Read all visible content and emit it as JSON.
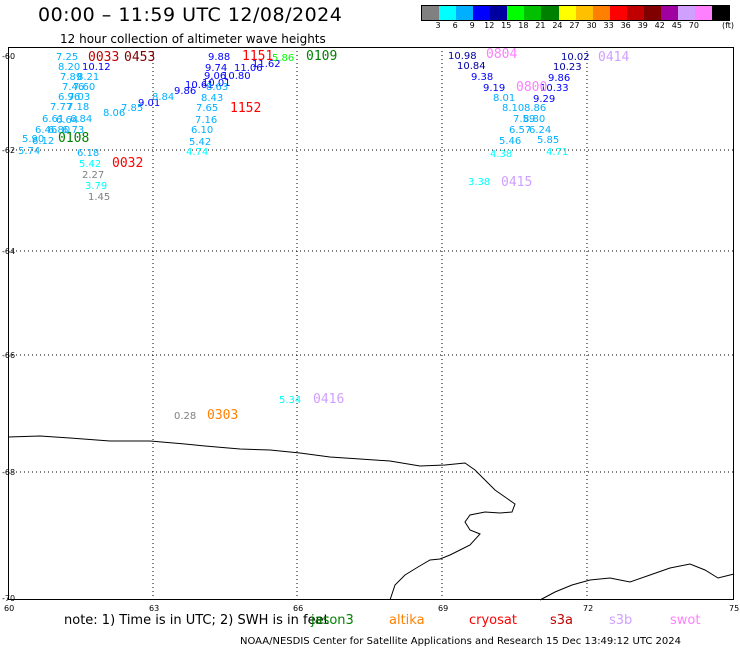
{
  "title": "00:00 – 11:59 UTC 12/08/2024",
  "subtitle": "12 hour collection of altimeter wave heights",
  "legend": {
    "unit": "(ft)",
    "ticks": [
      "3",
      "6",
      "9",
      "12",
      "15",
      "18",
      "21",
      "24",
      "27",
      "30",
      "33",
      "36",
      "39",
      "42",
      "45",
      "70"
    ],
    "colors": [
      "#808080",
      "#00ffff",
      "#00b0ff",
      "#0000ff",
      "#0000a0",
      "#00ff00",
      "#00c000",
      "#008000",
      "#ffff00",
      "#ffc000",
      "#ff8000",
      "#ff0000",
      "#c00000",
      "#800000",
      "#a000a0",
      "#d0a0ff",
      "#ff80ff",
      "#000000"
    ]
  },
  "axes": {
    "lat_labels": [
      "-60",
      "-62",
      "-64",
      "-66",
      "-68",
      "-70"
    ],
    "lon_labels": [
      "60",
      "63",
      "66",
      "69",
      "72",
      "75"
    ]
  },
  "wave_labels": [
    {
      "text": "7.25",
      "color": "#00b0ff"
    },
    {
      "text": "10.12",
      "color": "#0000ff"
    },
    {
      "text": "8.20",
      "color": "#00b0ff"
    },
    {
      "text": "7.89",
      "color": "#00b0ff"
    },
    {
      "text": "8.21",
      "color": "#00b0ff"
    },
    {
      "text": "7.46",
      "color": "#00b0ff"
    },
    {
      "text": "7.60",
      "color": "#00b0ff"
    },
    {
      "text": "6.96",
      "color": "#00b0ff"
    },
    {
      "text": "7.03",
      "color": "#00b0ff"
    },
    {
      "text": "7.77",
      "color": "#00b0ff"
    },
    {
      "text": "7.18",
      "color": "#00b0ff"
    },
    {
      "text": "6.61",
      "color": "#00b0ff"
    },
    {
      "text": "6.64",
      "color": "#00b0ff"
    },
    {
      "text": "6.84",
      "color": "#00b0ff"
    },
    {
      "text": "6.46",
      "color": "#00b0ff"
    },
    {
      "text": "6.80",
      "color": "#00b0ff"
    },
    {
      "text": "6.73",
      "color": "#00b0ff"
    },
    {
      "text": "5.90",
      "color": "#00b0ff"
    },
    {
      "text": "6.12",
      "color": "#00b0ff"
    },
    {
      "text": "5.74",
      "color": "#00b0ff"
    },
    {
      "text": "7.85",
      "color": "#00b0ff"
    },
    {
      "text": "8.06",
      "color": "#00b0ff"
    },
    {
      "text": "9.01",
      "color": "#0000ff"
    },
    {
      "text": "8.84",
      "color": "#00b0ff"
    },
    {
      "text": "9.86",
      "color": "#0000ff"
    },
    {
      "text": "10.61",
      "color": "#0000ff"
    },
    {
      "text": "9.88",
      "color": "#0000ff"
    },
    {
      "text": "9.74",
      "color": "#0000ff"
    },
    {
      "text": "11.06",
      "color": "#0000ff"
    },
    {
      "text": "11.62",
      "color": "#0000ff"
    },
    {
      "text": "9.06",
      "color": "#0000ff"
    },
    {
      "text": "10.80",
      "color": "#0000ff"
    },
    {
      "text": "10.01",
      "color": "#0000ff"
    },
    {
      "text": "8.63",
      "color": "#00b0ff"
    },
    {
      "text": "8.43",
      "color": "#00b0ff"
    },
    {
      "text": "7.65",
      "color": "#00b0ff"
    },
    {
      "text": "7.16",
      "color": "#00b0ff"
    },
    {
      "text": "6.10",
      "color": "#00b0ff"
    },
    {
      "text": "5.42",
      "color": "#00b0ff"
    },
    {
      "text": "4.74",
      "color": "#00ffff"
    },
    {
      "text": "6.18",
      "color": "#00b0ff"
    },
    {
      "text": "5.42",
      "color": "#00ffff"
    },
    {
      "text": "2.27",
      "color": "#808080"
    },
    {
      "text": "3.79",
      "color": "#00ffff"
    },
    {
      "text": "1.45",
      "color": "#808080"
    },
    {
      "text": "5.86",
      "color": "#00ff00"
    },
    {
      "text": "10.98",
      "color": "#0000a0"
    },
    {
      "text": "10.84",
      "color": "#0000a0"
    },
    {
      "text": "9.38",
      "color": "#0000ff"
    },
    {
      "text": "9.19",
      "color": "#0000ff"
    },
    {
      "text": "8.01",
      "color": "#00b0ff"
    },
    {
      "text": "8.10",
      "color": "#00b0ff"
    },
    {
      "text": "8.86",
      "color": "#00b0ff"
    },
    {
      "text": "7.59",
      "color": "#00b0ff"
    },
    {
      "text": "8.80",
      "color": "#00b0ff"
    },
    {
      "text": "6.57",
      "color": "#00b0ff"
    },
    {
      "text": "6.24",
      "color": "#00b0ff"
    },
    {
      "text": "5.46",
      "color": "#00b0ff"
    },
    {
      "text": "5.85",
      "color": "#00b0ff"
    },
    {
      "text": "4.38",
      "color": "#00ffff"
    },
    {
      "text": "4.71",
      "color": "#00ffff"
    },
    {
      "text": "10.02",
      "color": "#0000a0"
    },
    {
      "text": "10.23",
      "color": "#0000a0"
    },
    {
      "text": "9.86",
      "color": "#0000ff"
    },
    {
      "text": "10.33",
      "color": "#0000ff"
    },
    {
      "text": "9.29",
      "color": "#0000ff"
    },
    {
      "text": "3.38",
      "color": "#00ffff"
    },
    {
      "text": "5.34",
      "color": "#00ffff"
    },
    {
      "text": "0.28",
      "color": "#808080"
    }
  ],
  "time_labels": [
    {
      "text": "0033",
      "color": "#c00000"
    },
    {
      "text": "0453",
      "color": "#800000"
    },
    {
      "text": "0108",
      "color": "#008000"
    },
    {
      "text": "0032",
      "color": "#ff0000"
    },
    {
      "text": "1151",
      "color": "#ff0000"
    },
    {
      "text": "1152",
      "color": "#ff0000"
    },
    {
      "text": "0109",
      "color": "#008000"
    },
    {
      "text": "0804",
      "color": "#ff80ff"
    },
    {
      "text": "0414",
      "color": "#d0a0ff"
    },
    {
      "text": "0800",
      "color": "#ff80ff"
    },
    {
      "text": "0415",
      "color": "#d0a0ff"
    },
    {
      "text": "0416",
      "color": "#d0a0ff"
    },
    {
      "text": "0303",
      "color": "#ff8000"
    }
  ],
  "footer": {
    "note": "note: 1) Time is in UTC; 2) SWH is in feet",
    "satellites": [
      {
        "name": "jason3",
        "color": "#008000"
      },
      {
        "name": "altika",
        "color": "#ff8000"
      },
      {
        "name": "cryosat",
        "color": "#ff0000"
      },
      {
        "name": "s3a",
        "color": "#c00000"
      },
      {
        "name": "s3b",
        "color": "#d0a0ff"
      },
      {
        "name": "swot",
        "color": "#ff80ff"
      }
    ],
    "credit": "NOAA/NESDIS Center for Satellite Applications and Research    15 Dec 13:49:12 UTC 2024"
  }
}
